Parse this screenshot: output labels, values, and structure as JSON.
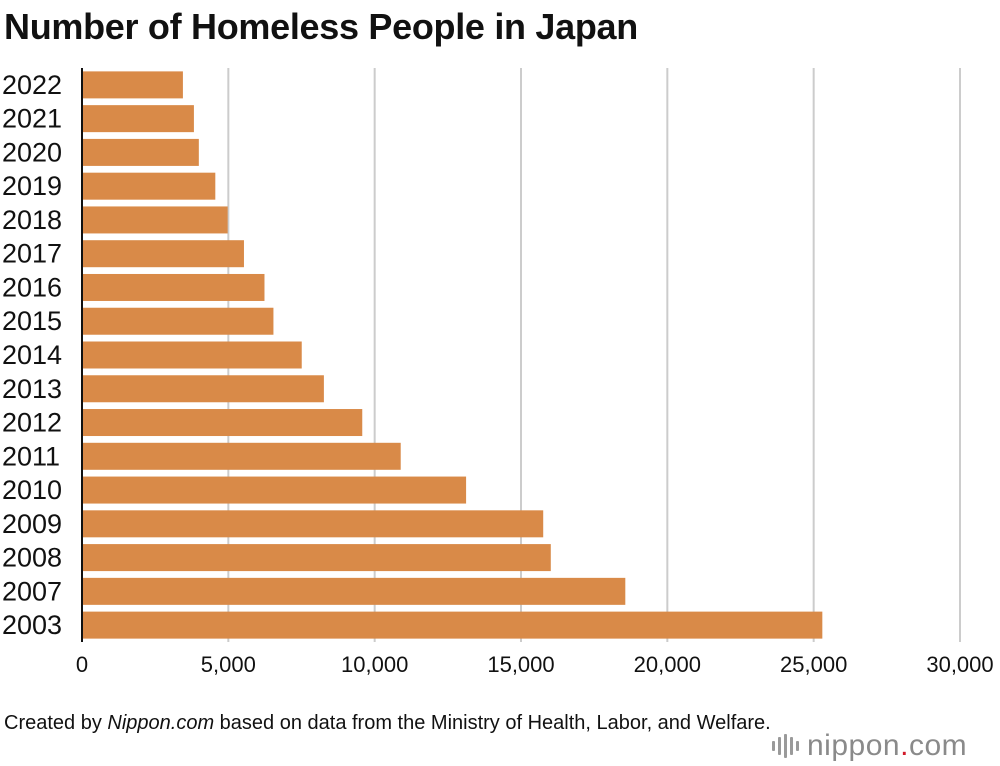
{
  "chart_data": {
    "type": "bar",
    "orientation": "horizontal",
    "title": "Number of Homeless People in Japan",
    "categories": [
      "2022",
      "2021",
      "2020",
      "2019",
      "2018",
      "2017",
      "2016",
      "2015",
      "2014",
      "2013",
      "2012",
      "2011",
      "2010",
      "2009",
      "2008",
      "2007",
      "2003"
    ],
    "values": [
      3448,
      3824,
      3992,
      4555,
      4977,
      5534,
      6235,
      6541,
      7508,
      8265,
      9576,
      10890,
      13124,
      15759,
      16018,
      18564,
      25296
    ],
    "xlim": [
      0,
      30000
    ],
    "xticks": [
      0,
      5000,
      10000,
      15000,
      20000,
      25000,
      30000
    ],
    "xtick_labels": [
      "0",
      "5,000",
      "10,000",
      "15,000",
      "20,000",
      "25,000",
      "30,000"
    ],
    "xlabel": "",
    "ylabel": "",
    "grid": "vertical",
    "bar_color": "#d98a48",
    "grid_color": "#cccccc"
  },
  "source": {
    "prefix": "Created by ",
    "site": "Nippon.com",
    "suffix": " based on data from the Ministry of Health, Labor, and Welfare."
  },
  "logo": {
    "word": "nippon",
    "dot": ".",
    "tld": "com",
    "dot_color": "#d11a2a"
  }
}
